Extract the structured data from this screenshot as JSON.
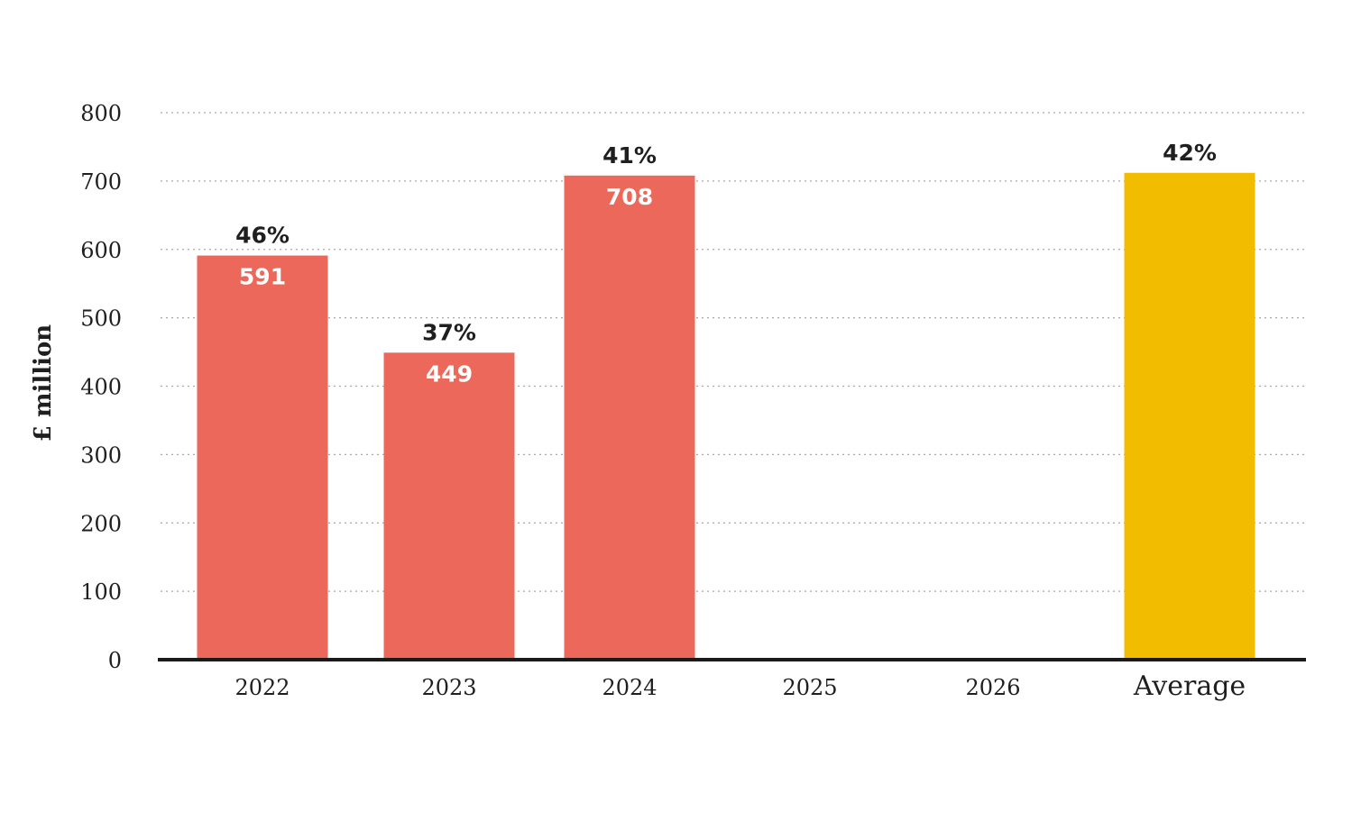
{
  "chart_data": {
    "type": "bar",
    "ylabel": "£ million",
    "xlabel": "",
    "ylim": [
      0,
      800
    ],
    "yticks": [
      0,
      100,
      200,
      300,
      400,
      500,
      600,
      700,
      800
    ],
    "grid": true,
    "categories": [
      "2022",
      "2023",
      "2024",
      "2025",
      "2026",
      "Average"
    ],
    "values": [
      591,
      449,
      708,
      null,
      null,
      712
    ],
    "value_labels": [
      "591",
      "449",
      "708",
      "",
      "",
      ""
    ],
    "percent_labels": [
      "46%",
      "37%",
      "41%",
      "",
      "",
      "42%"
    ],
    "colors": [
      "#EB685A",
      "#EB685A",
      "#EB685A",
      "#EB685A",
      "#EB685A",
      "#F2BC00"
    ]
  }
}
